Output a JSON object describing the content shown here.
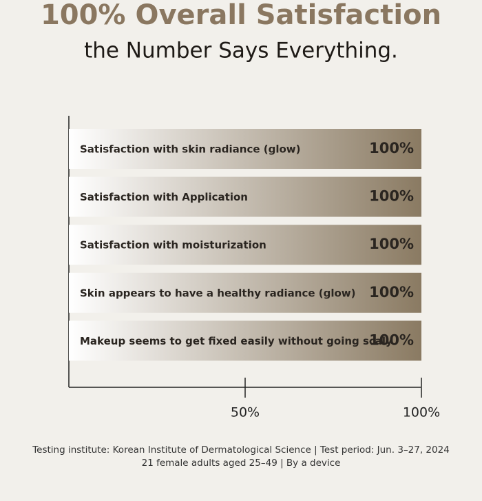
{
  "chart_data": {
    "type": "bar",
    "orientation": "horizontal",
    "title": "100% Overall Satisfaction",
    "subtitle": "the Number Says Everything.",
    "categories": [
      "Satisfaction with skin radiance (glow)",
      "Satisfaction with Application",
      "Satisfaction with moisturization",
      "Skin appears to have a healthy radiance (glow)",
      "Makeup seems to get fixed easily without going scaly"
    ],
    "values": [
      100,
      100,
      100,
      100,
      100
    ],
    "value_labels": [
      "100%",
      "100%",
      "100%",
      "100%",
      "100%"
    ],
    "color": "#8a7a62",
    "xlim": [
      0,
      100
    ],
    "xticks": [
      {
        "value": 50,
        "label": "50%"
      },
      {
        "value": 100,
        "label": "100%"
      }
    ],
    "footnote": [
      "Testing institute: Korean Institute of Dermatological Science | Test period: Jun. 3–27, 2024",
      "21 female adults aged 25–49 | By a device"
    ]
  }
}
